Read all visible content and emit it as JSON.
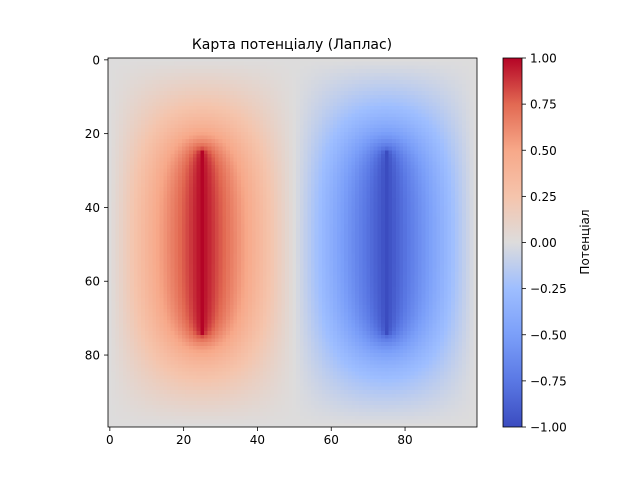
{
  "chart_data": {
    "type": "heatmap",
    "title": "Карта потенціалу (Лаплас)",
    "xlabel": "",
    "ylabel": "",
    "grid_size": [
      100,
      100
    ],
    "xlim": [
      -0.5,
      99.5
    ],
    "ylim": [
      99.5,
      -0.5
    ],
    "x_ticks": [
      0,
      20,
      40,
      60,
      80
    ],
    "y_ticks": [
      0,
      20,
      40,
      60,
      80
    ],
    "colormap": "coolwarm",
    "value_range": [
      -1,
      1
    ],
    "boundary_conditions": [
      {
        "value": 1.0,
        "x": 25,
        "y_from": 25,
        "y_to": 74
      },
      {
        "value": -1.0,
        "x": 75,
        "y_from": 25,
        "y_to": 74
      }
    ],
    "colorbar": {
      "label": "Потенціал",
      "ticks": [
        1.0,
        0.75,
        0.5,
        0.25,
        0.0,
        -0.25,
        -0.5,
        -0.75,
        -1.0
      ],
      "tick_labels": [
        "1.00",
        "0.75",
        "0.50",
        "0.25",
        "0.00",
        "−0.25",
        "−0.50",
        "−0.75",
        "−1.00"
      ]
    }
  }
}
